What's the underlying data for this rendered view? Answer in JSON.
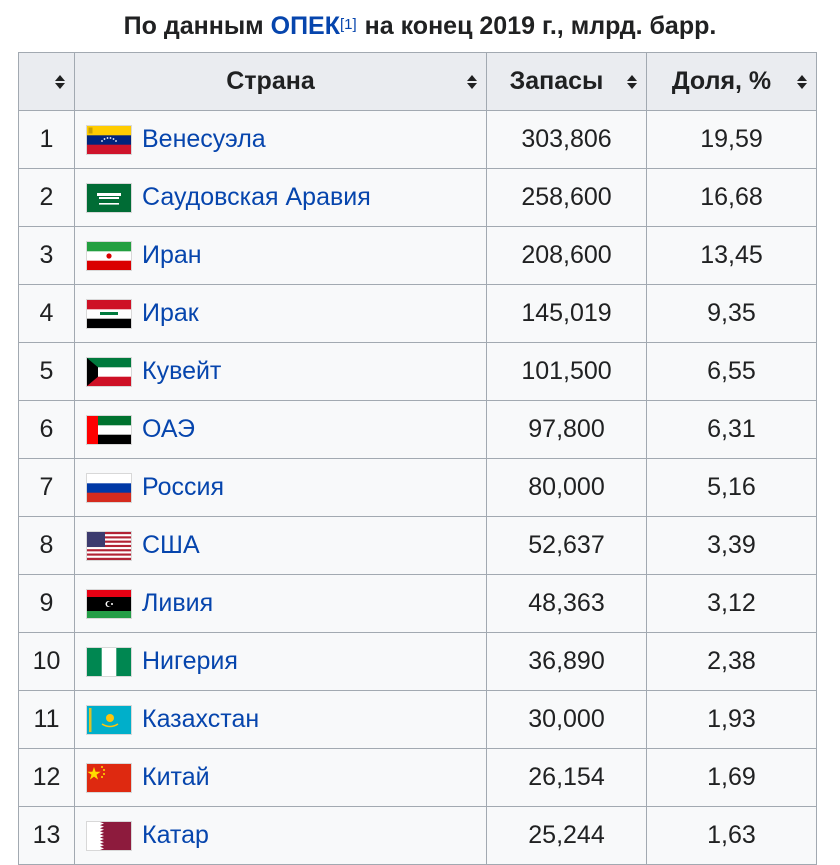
{
  "caption": {
    "prefix": "По данным",
    "link": "ОПЕК",
    "ref": "[1]",
    "suffix": "на конец 2019 г., млрд. барр."
  },
  "headers": [
    "",
    "Страна",
    "Запасы",
    "Доля, %"
  ],
  "rows": [
    {
      "rank": "1",
      "country": "Венесуэла",
      "reserves": "303,806",
      "share": "19,59",
      "flag": "venezuela"
    },
    {
      "rank": "2",
      "country": "Саудовская Аравия",
      "reserves": "258,600",
      "share": "16,68",
      "flag": "saudi-arabia"
    },
    {
      "rank": "3",
      "country": "Иран",
      "reserves": "208,600",
      "share": "13,45",
      "flag": "iran"
    },
    {
      "rank": "4",
      "country": "Ирак",
      "reserves": "145,019",
      "share": "9,35",
      "flag": "iraq"
    },
    {
      "rank": "5",
      "country": "Кувейт",
      "reserves": "101,500",
      "share": "6,55",
      "flag": "kuwait"
    },
    {
      "rank": "6",
      "country": "ОАЭ",
      "reserves": "97,800",
      "share": "6,31",
      "flag": "uae"
    },
    {
      "rank": "7",
      "country": "Россия",
      "reserves": "80,000",
      "share": "5,16",
      "flag": "russia"
    },
    {
      "rank": "8",
      "country": "США",
      "reserves": "52,637",
      "share": "3,39",
      "flag": "usa"
    },
    {
      "rank": "9",
      "country": "Ливия",
      "reserves": "48,363",
      "share": "3,12",
      "flag": "libya"
    },
    {
      "rank": "10",
      "country": "Нигерия",
      "reserves": "36,890",
      "share": "2,38",
      "flag": "nigeria"
    },
    {
      "rank": "11",
      "country": "Казахстан",
      "reserves": "30,000",
      "share": "1,93",
      "flag": "kazakhstan"
    },
    {
      "rank": "12",
      "country": "Китай",
      "reserves": "26,154",
      "share": "1,69",
      "flag": "china"
    },
    {
      "rank": "13",
      "country": "Катар",
      "reserves": "25,244",
      "share": "1,63",
      "flag": "qatar"
    }
  ]
}
